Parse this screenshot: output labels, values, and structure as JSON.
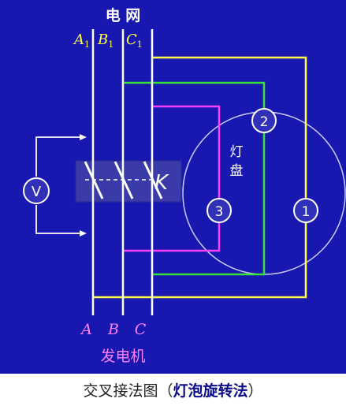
{
  "grid": {
    "title": "电 网",
    "phase_prefixes": [
      "A",
      "B",
      "C"
    ],
    "phase_subscript": "1"
  },
  "generator": {
    "title": "发电机",
    "phases": [
      "A",
      "B",
      "C"
    ]
  },
  "switch_label": "K",
  "voltmeter_label": "V",
  "lamp_panel": {
    "label_line1": "灯",
    "label_line2": "盘"
  },
  "lamps": [
    "1",
    "2",
    "3"
  ],
  "caption": {
    "main": "交叉接法图",
    "open": "（",
    "method": "灯泡旋转法",
    "close": "）"
  },
  "colors": {
    "background": "#1818b0",
    "bus": "#ffffff",
    "yellow": "#ffff40",
    "green": "#38e038",
    "magenta": "#ff40ff",
    "phase_labels": "#ff80ff"
  }
}
